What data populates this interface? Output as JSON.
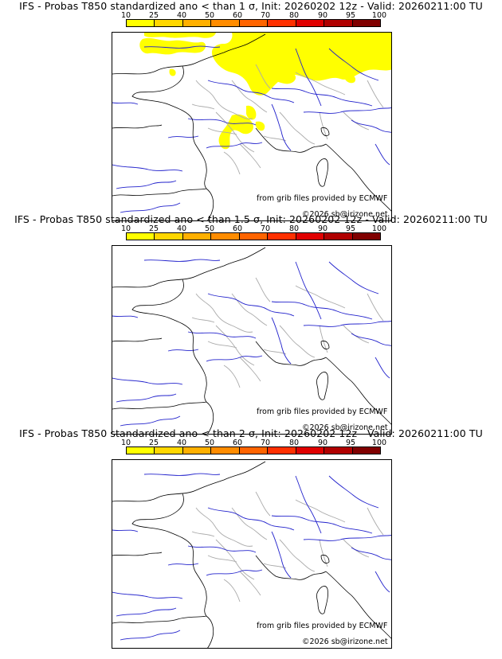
{
  "colorbar": {
    "ticks": [
      "10",
      "25",
      "40",
      "50",
      "60",
      "70",
      "80",
      "90",
      "95",
      "100"
    ],
    "colors": [
      "#ffff00",
      "#ffd700",
      "#ffb000",
      "#ff8c00",
      "#ff6400",
      "#ff3000",
      "#e00000",
      "#b00000",
      "#800000"
    ]
  },
  "source_credit": "from grib files provided by ECMWF",
  "copyright": "©2026 sb@irizone.net",
  "colors": {
    "anomaly_fill": "#ffff00",
    "rivers": "#2222cc",
    "borders": "#aaaaaa",
    "coast": "#000000"
  },
  "panels": [
    {
      "title": "IFS - Probas T850  standardized ano < than 1 σ, Init: 20260202 12z - Valid: 20260211:00 TU",
      "probability_areas": [
        "northern France / Benelux / western Germany",
        "central France"
      ]
    },
    {
      "title": "IFS - Probas T850  standardized ano < than 1.5 σ, Init: 20260202 12z - Valid: 20260211:00 TU",
      "probability_areas": []
    },
    {
      "title": "IFS - Probas T850  standardized ano < than 2 σ, Init: 20260202 12z - Valid: 20260211:00 TU",
      "probability_areas": []
    }
  ]
}
